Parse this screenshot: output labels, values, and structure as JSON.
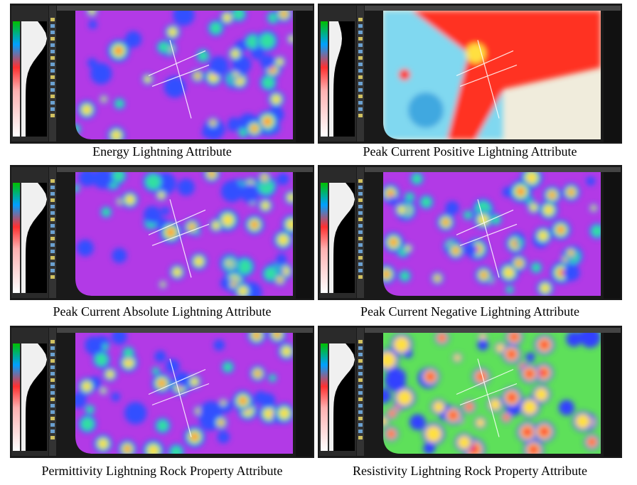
{
  "panels": [
    {
      "caption": "Energy Lightning Attribute"
    },
    {
      "caption": "Peak Current Positive Lightning Attribute"
    },
    {
      "caption": "Peak Current Absolute Lightning Attribute"
    },
    {
      "caption": "Peak Current Negative Lightning Attribute"
    },
    {
      "caption": "Permittivity Lightning Rock Property Attribute"
    },
    {
      "caption": "Resistivity Lightning Rock Property Attribute"
    }
  ]
}
